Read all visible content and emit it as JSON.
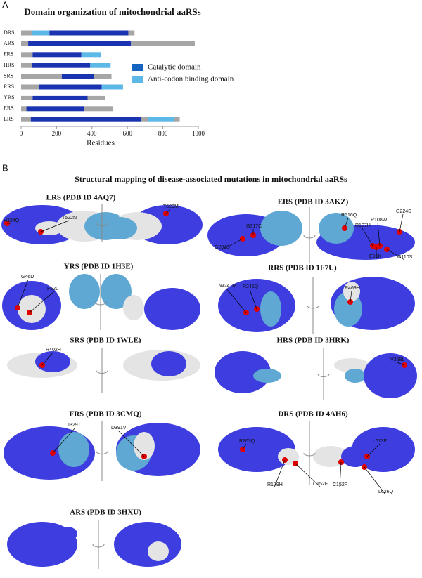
{
  "chart_data": {
    "type": "stacked-bar",
    "panel_label": "A",
    "title": "Domain organization of mitochondrial aaRSs",
    "categories": [
      "DRS",
      "ARS",
      "FRS",
      "HRS",
      "SRS",
      "RRS",
      "YRS",
      "ERS",
      "LRS"
    ],
    "rows": [
      {
        "segments": [
          {
            "color": "#a6a6a6",
            "value": 60
          },
          {
            "color": "#5cb8e6",
            "value": 100
          },
          {
            "color": "#1a33b0",
            "value": 445
          },
          {
            "color": "#a6a6a6",
            "value": 35
          }
        ]
      },
      {
        "segments": [
          {
            "color": "#a6a6a6",
            "value": 40
          },
          {
            "color": "#1a33b0",
            "value": 580
          },
          {
            "color": "#a6a6a6",
            "value": 360
          }
        ]
      },
      {
        "segments": [
          {
            "color": "#a6a6a6",
            "value": 65
          },
          {
            "color": "#1a33b0",
            "value": 275
          },
          {
            "color": "#5cb8e6",
            "value": 110
          }
        ]
      },
      {
        "segments": [
          {
            "color": "#a6a6a6",
            "value": 60
          },
          {
            "color": "#1a33b0",
            "value": 330
          },
          {
            "color": "#5cb8e6",
            "value": 115
          }
        ]
      },
      {
        "segments": [
          {
            "color": "#a6a6a6",
            "value": 230
          },
          {
            "color": "#1a33b0",
            "value": 180
          },
          {
            "color": "#a6a6a6",
            "value": 100
          }
        ]
      },
      {
        "segments": [
          {
            "color": "#a6a6a6",
            "value": 100
          },
          {
            "color": "#1a33b0",
            "value": 355
          },
          {
            "color": "#5cb8e6",
            "value": 120
          }
        ]
      },
      {
        "segments": [
          {
            "color": "#a6a6a6",
            "value": 65
          },
          {
            "color": "#1a33b0",
            "value": 310
          },
          {
            "color": "#a6a6a6",
            "value": 100
          }
        ]
      },
      {
        "segments": [
          {
            "color": "#a6a6a6",
            "value": 30
          },
          {
            "color": "#1a33b0",
            "value": 325
          },
          {
            "color": "#a6a6a6",
            "value": 165
          }
        ]
      },
      {
        "segments": [
          {
            "color": "#a6a6a6",
            "value": 55
          },
          {
            "color": "#1a33b0",
            "value": 620
          },
          {
            "color": "#a6a6a6",
            "value": 40
          },
          {
            "color": "#5cb8e6",
            "value": 150
          },
          {
            "color": "#a6a6a6",
            "value": 30
          }
        ]
      }
    ],
    "legend": [
      {
        "name": "Catalytic domain",
        "color": "#1565c0"
      },
      {
        "name": "Anti-codon binding domain",
        "color": "#5cb8e6"
      }
    ],
    "xlabel": "Residues",
    "xlim": [
      0,
      1000
    ],
    "xticks": [
      0,
      200,
      400,
      600,
      800,
      1000
    ]
  },
  "panel_b": {
    "label": "B",
    "title": "Structural mapping of disease-associated mutations in mitochondrial aaRSs",
    "structures": [
      {
        "title": "LRS (PDB ID 4AQ7)",
        "mutations": [
          "H324Q",
          "T522N",
          "T629M"
        ]
      },
      {
        "title": "ERS (PDB ID 3AKZ)",
        "mutations": [
          "G317C",
          "G204S",
          "R516Q",
          "R107H",
          "R108W",
          "G224S",
          "E96K",
          "G110S"
        ]
      },
      {
        "title": "YRS (PDB ID 1H3E)",
        "mutations": [
          "G46D",
          "F52L"
        ]
      },
      {
        "title": "RRS (PDB ID 1F7U)",
        "mutations": [
          "W241R",
          "R245Q",
          "R469H"
        ]
      },
      {
        "title": "SRS (PDB ID 1WLE)",
        "mutations": [
          "R402H"
        ]
      },
      {
        "title": "HRS (PDB ID 3HRK)",
        "mutations": [
          "V368L"
        ]
      },
      {
        "title": "FRS (PDB ID 3CMQ)",
        "mutations": [
          "I329T",
          "D391V"
        ]
      },
      {
        "title": "DRS (PDB ID 4AH6)",
        "mutations": [
          "R263Q",
          "L613F",
          "R179H",
          "C152F",
          "C152F",
          "L626Q"
        ]
      },
      {
        "title": "ARS (PDB ID 3HXU)"
      }
    ]
  }
}
